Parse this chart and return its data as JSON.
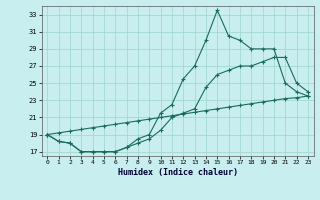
{
  "xlabel": "Humidex (Indice chaleur)",
  "bg_color": "#c8eef0",
  "line_color": "#1a6b5a",
  "grid_color": "#9dd5cc",
  "xlim": [
    -0.5,
    23.5
  ],
  "ylim": [
    16.5,
    34
  ],
  "xticks": [
    0,
    1,
    2,
    3,
    4,
    5,
    6,
    7,
    8,
    9,
    10,
    11,
    12,
    13,
    14,
    15,
    16,
    17,
    18,
    19,
    20,
    21,
    22,
    23
  ],
  "yticks": [
    17,
    19,
    21,
    23,
    25,
    27,
    29,
    31,
    33
  ],
  "line1_y": [
    19.0,
    18.2,
    18.0,
    17.0,
    17.0,
    17.0,
    17.0,
    17.5,
    18.5,
    19.0,
    21.5,
    22.5,
    25.5,
    27.0,
    30.0,
    33.5,
    30.5,
    30.0,
    29.0,
    29.0,
    29.0,
    25.0,
    24.0,
    23.5
  ],
  "line2_y": [
    19.0,
    18.2,
    18.0,
    17.0,
    17.0,
    17.0,
    17.0,
    17.5,
    18.0,
    18.5,
    19.5,
    21.0,
    21.5,
    22.0,
    24.5,
    26.0,
    26.5,
    27.0,
    27.0,
    27.5,
    28.0,
    28.0,
    25.0,
    24.0
  ],
  "line3_y": [
    19.0,
    19.2,
    19.4,
    19.6,
    19.8,
    20.0,
    20.2,
    20.4,
    20.6,
    20.8,
    21.0,
    21.2,
    21.4,
    21.6,
    21.8,
    22.0,
    22.2,
    22.4,
    22.6,
    22.8,
    23.0,
    23.2,
    23.3,
    23.5
  ]
}
